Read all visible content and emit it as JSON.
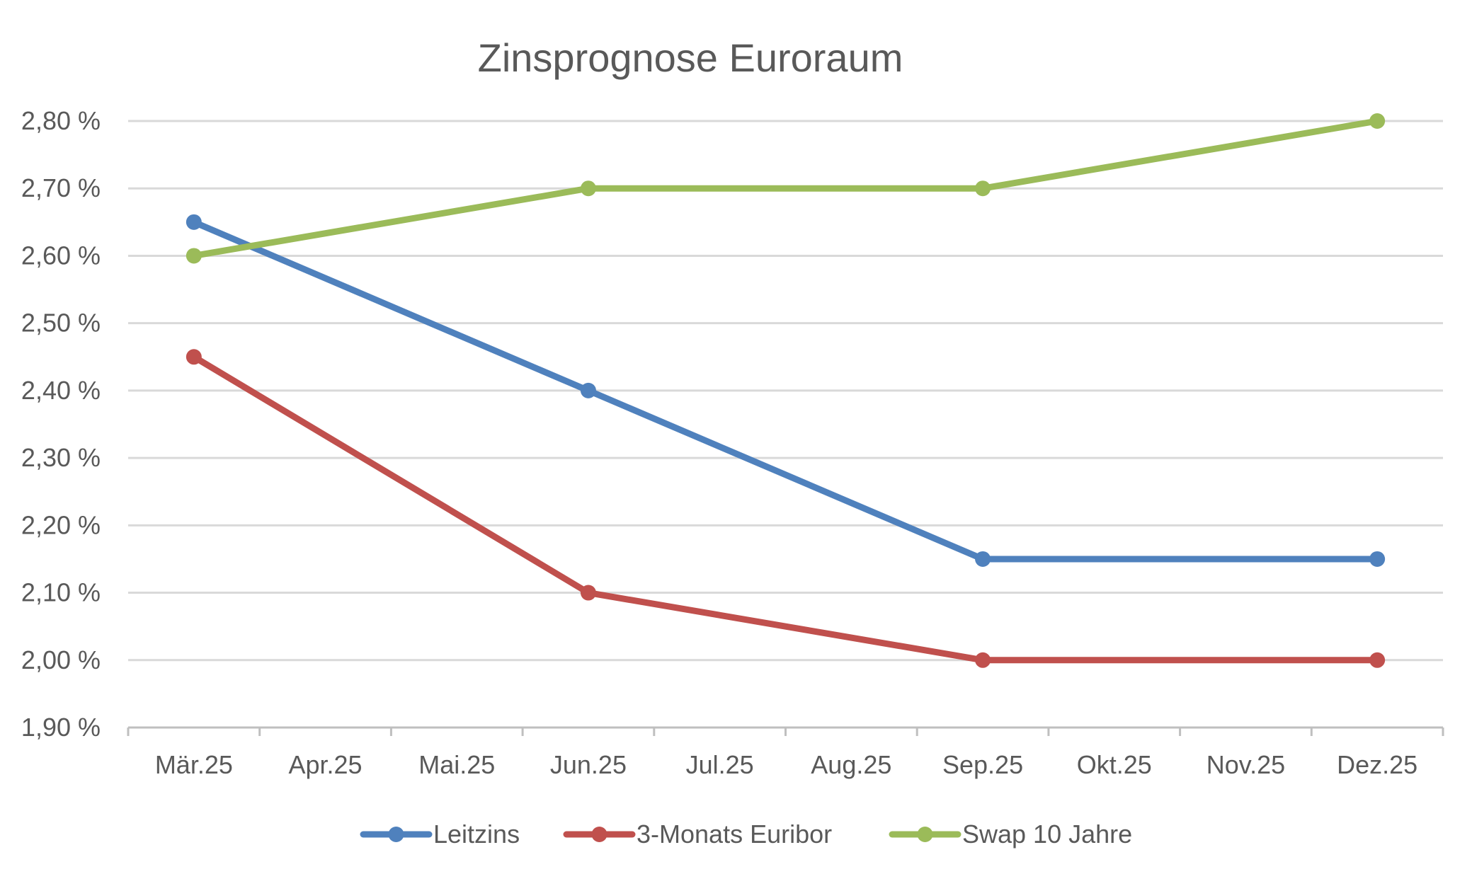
{
  "chart_data": {
    "type": "line",
    "title": "Zinsprognose Euroraum",
    "xlabel": "",
    "ylabel": "",
    "categories": [
      "Mär.25",
      "Apr.25",
      "Mai.25",
      "Jun.25",
      "Jul.25",
      "Aug.25",
      "Sep.25",
      "Okt.25",
      "Nov.25",
      "Dez.25"
    ],
    "ylim": [
      1.9,
      2.8
    ],
    "yticks": [
      1.9,
      2.0,
      2.1,
      2.2,
      2.3,
      2.4,
      2.5,
      2.6,
      2.7,
      2.8
    ],
    "ytick_labels": [
      "1,90 %",
      "2,00 %",
      "2,10 %",
      "2,20 %",
      "2,30 %",
      "2,40 %",
      "2,50 %",
      "2,60 %",
      "2,70 %",
      "2,80 %"
    ],
    "grid": true,
    "legend_position": "bottom",
    "series": [
      {
        "name": "Leitzins",
        "color": "#4f81bd",
        "points": [
          {
            "x": "Mär.25",
            "y": 2.65
          },
          {
            "x": "Jun.25",
            "y": 2.4
          },
          {
            "x": "Sep.25",
            "y": 2.15
          },
          {
            "x": "Dez.25",
            "y": 2.15
          }
        ]
      },
      {
        "name": "3-Monats Euribor",
        "color": "#c0504d",
        "points": [
          {
            "x": "Mär.25",
            "y": 2.45
          },
          {
            "x": "Jun.25",
            "y": 2.1
          },
          {
            "x": "Sep.25",
            "y": 2.0
          },
          {
            "x": "Dez.25",
            "y": 2.0
          }
        ]
      },
      {
        "name": "Swap 10 Jahre",
        "color": "#9bbb59",
        "points": [
          {
            "x": "Mär.25",
            "y": 2.6
          },
          {
            "x": "Jun.25",
            "y": 2.7
          },
          {
            "x": "Sep.25",
            "y": 2.7
          },
          {
            "x": "Dez.25",
            "y": 2.8
          }
        ]
      }
    ],
    "gridline_color": "#d9d9d9",
    "axis_color": "#bfbfbf"
  }
}
